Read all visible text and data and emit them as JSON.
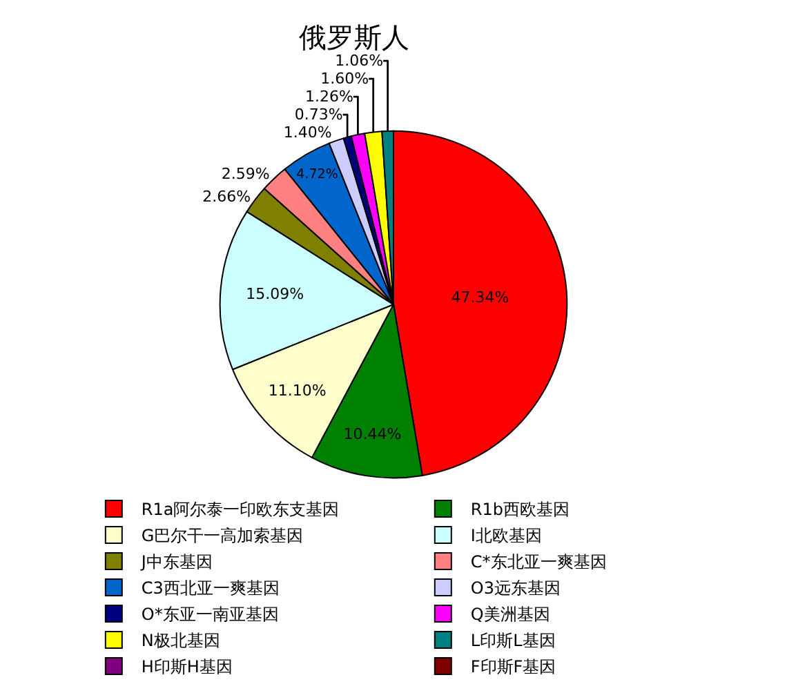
{
  "chart_data": {
    "type": "pie",
    "title": "俄罗斯人",
    "categories": [
      "R1a阿尔泰一印欧东支基因",
      "R1b西欧基因",
      "G巴尔干一高加索基因",
      "I北欧基因",
      "J中东基因",
      "C*东北亚一爽基因",
      "C3西北亚一爽基因",
      "O3远东基因",
      "O*东亚一南亚基因",
      "Q美洲基因",
      "N极北基因",
      "L印斯L基因",
      "H印斯H基因",
      "F印斯F基因"
    ],
    "values": [
      47.34,
      10.44,
      11.1,
      15.09,
      2.66,
      2.59,
      4.72,
      1.4,
      0.73,
      1.26,
      1.6,
      1.06,
      0,
      0
    ],
    "value_labels": [
      "47.34%",
      "10.44%",
      "11.10%",
      "15.09%",
      "2.66%",
      "2.59%",
      "4.72%",
      "1.40%",
      "0.73%",
      "1.26%",
      "1.60%",
      "1.06%",
      null,
      null
    ],
    "colors": [
      "#ff0000",
      "#008000",
      "#ffffcc",
      "#ccffff",
      "#808000",
      "#ff8080",
      "#0066cc",
      "#ccccff",
      "#000080",
      "#ff00ff",
      "#ffff00",
      "#008080",
      "#800080",
      "#800000"
    ],
    "legend": "bottom"
  }
}
